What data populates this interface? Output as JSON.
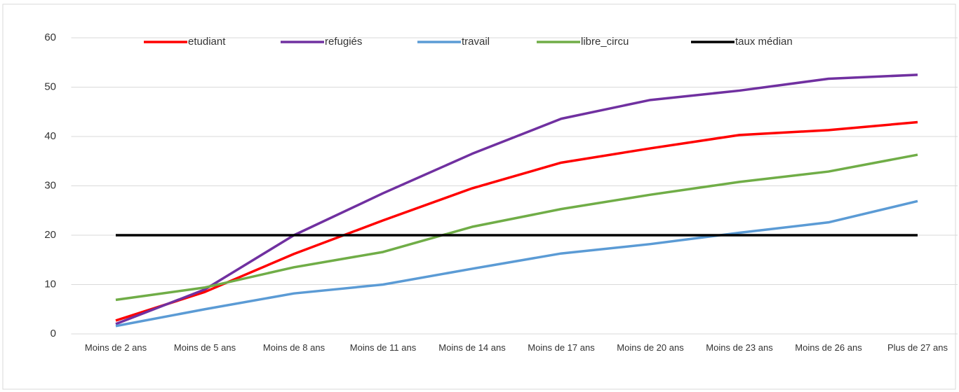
{
  "chart_data": {
    "type": "line",
    "categories": [
      "Moins de 2 ans",
      "Moins de 5 ans",
      "Moins de 8 ans",
      "Moins de 11 ans",
      "Moins de 14 ans",
      "Moins de 17 ans",
      "Moins de 20 ans",
      "Moins de 23 ans",
      "Moins de 26 ans",
      "Plus de 27 ans"
    ],
    "series": [
      {
        "name": "etudiant",
        "color": "#ff0000",
        "values": [
          2.7,
          8.5,
          16.2,
          23,
          29.5,
          34.7,
          37.6,
          40.3,
          41.3,
          42.9
        ]
      },
      {
        "name": "refugiés",
        "color": "#7030a0",
        "values": [
          2,
          9,
          20,
          28.5,
          36.5,
          43.6,
          47.4,
          49.3,
          51.7,
          52.5
        ]
      },
      {
        "name": "travail",
        "color": "#5b9bd5",
        "values": [
          1.6,
          5,
          8.2,
          10,
          13.2,
          16.3,
          18.2,
          20.5,
          22.6,
          26.9
        ]
      },
      {
        "name": "libre_circu",
        "color": "#70ad47",
        "values": [
          6.9,
          9.4,
          13.5,
          16.6,
          21.7,
          25.3,
          28.2,
          30.8,
          32.9,
          36.3
        ]
      },
      {
        "name": "taux médian",
        "color": "#000000",
        "values": [
          20,
          20,
          20,
          20,
          20,
          20,
          20,
          20,
          20,
          20
        ]
      }
    ],
    "ylim": [
      0,
      60
    ],
    "yticks": [
      0,
      10,
      20,
      30,
      40,
      50,
      60
    ],
    "grid": true,
    "legend": "top"
  }
}
